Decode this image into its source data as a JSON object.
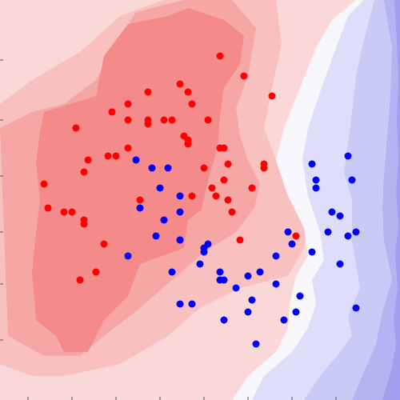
{
  "chart_data": {
    "type": "scatter",
    "title": "",
    "xlabel": "",
    "ylabel": "",
    "grid": false,
    "legend": "none",
    "xlim": [
      0,
      1
    ],
    "ylim": [
      0,
      1
    ],
    "x_ticks": [
      0.07,
      0.18,
      0.29,
      0.4,
      0.51,
      0.62,
      0.73,
      0.84
    ],
    "y_ticks": [
      0.85,
      0.7,
      0.56,
      0.42,
      0.29,
      0.15
    ],
    "colors": {
      "class_a": "#ff0000",
      "class_b": "#0000ff",
      "bg_red_1": "#fbd8d8",
      "bg_red_2": "#f9c0c0",
      "bg_red_3": "#f7a6a6",
      "bg_red_4": "#f58a8a",
      "bg_white": "#f7f7fb",
      "bg_blue_1": "#dedefa",
      "bg_blue_2": "#cacaf6",
      "bg_blue_3": "#b4b4f2",
      "bg_blue_4": "#a0a0ee"
    },
    "series": [
      {
        "color": "#ff0000",
        "points": [
          [
            0.55,
            0.86
          ],
          [
            0.61,
            0.81
          ],
          [
            0.37,
            0.77
          ],
          [
            0.45,
            0.79
          ],
          [
            0.47,
            0.77
          ],
          [
            0.32,
            0.74
          ],
          [
            0.48,
            0.74
          ],
          [
            0.28,
            0.72
          ],
          [
            0.32,
            0.7
          ],
          [
            0.37,
            0.7
          ],
          [
            0.41,
            0.7
          ],
          [
            0.43,
            0.7
          ],
          [
            0.37,
            0.69
          ],
          [
            0.52,
            0.7
          ],
          [
            0.19,
            0.68
          ],
          [
            0.46,
            0.66
          ],
          [
            0.47,
            0.65
          ],
          [
            0.47,
            0.64
          ],
          [
            0.32,
            0.63
          ],
          [
            0.55,
            0.63
          ],
          [
            0.56,
            0.63
          ],
          [
            0.29,
            0.61
          ],
          [
            0.27,
            0.61
          ],
          [
            0.22,
            0.6
          ],
          [
            0.21,
            0.57
          ],
          [
            0.57,
            0.59
          ],
          [
            0.66,
            0.59
          ],
          [
            0.66,
            0.58
          ],
          [
            0.51,
            0.58
          ],
          [
            0.56,
            0.55
          ],
          [
            0.11,
            0.54
          ],
          [
            0.63,
            0.53
          ],
          [
            0.53,
            0.53
          ],
          [
            0.54,
            0.51
          ],
          [
            0.48,
            0.51
          ],
          [
            0.57,
            0.5
          ],
          [
            0.35,
            0.5
          ],
          [
            0.12,
            0.48
          ],
          [
            0.16,
            0.47
          ],
          [
            0.18,
            0.47
          ],
          [
            0.58,
            0.47
          ],
          [
            0.21,
            0.45
          ],
          [
            0.21,
            0.44
          ],
          [
            0.74,
            0.41
          ],
          [
            0.6,
            0.4
          ],
          [
            0.26,
            0.39
          ],
          [
            0.24,
            0.32
          ],
          [
            0.2,
            0.3
          ],
          [
            0.68,
            0.76
          ]
        ]
      },
      {
        "color": "#0000ff",
        "points": [
          [
            0.87,
            0.61
          ],
          [
            0.34,
            0.6
          ],
          [
            0.38,
            0.58
          ],
          [
            0.42,
            0.58
          ],
          [
            0.78,
            0.59
          ],
          [
            0.79,
            0.55
          ],
          [
            0.88,
            0.55
          ],
          [
            0.79,
            0.53
          ],
          [
            0.4,
            0.53
          ],
          [
            0.45,
            0.51
          ],
          [
            0.35,
            0.48
          ],
          [
            0.45,
            0.47
          ],
          [
            0.83,
            0.47
          ],
          [
            0.85,
            0.46
          ],
          [
            0.41,
            0.45
          ],
          [
            0.72,
            0.42
          ],
          [
            0.82,
            0.42
          ],
          [
            0.89,
            0.42
          ],
          [
            0.87,
            0.41
          ],
          [
            0.39,
            0.41
          ],
          [
            0.45,
            0.4
          ],
          [
            0.45,
            0.4
          ],
          [
            0.52,
            0.39
          ],
          [
            0.51,
            0.38
          ],
          [
            0.73,
            0.39
          ],
          [
            0.51,
            0.37
          ],
          [
            0.78,
            0.37
          ],
          [
            0.69,
            0.36
          ],
          [
            0.32,
            0.36
          ],
          [
            0.85,
            0.34
          ],
          [
            0.5,
            0.34
          ],
          [
            0.65,
            0.32
          ],
          [
            0.43,
            0.32
          ],
          [
            0.55,
            0.32
          ],
          [
            0.62,
            0.31
          ],
          [
            0.55,
            0.3
          ],
          [
            0.56,
            0.3
          ],
          [
            0.69,
            0.29
          ],
          [
            0.59,
            0.28
          ],
          [
            0.75,
            0.26
          ],
          [
            0.63,
            0.25
          ],
          [
            0.45,
            0.24
          ],
          [
            0.48,
            0.24
          ],
          [
            0.89,
            0.23
          ],
          [
            0.74,
            0.22
          ],
          [
            0.62,
            0.22
          ],
          [
            0.56,
            0.2
          ],
          [
            0.71,
            0.2
          ],
          [
            0.64,
            0.14
          ]
        ]
      }
    ]
  }
}
